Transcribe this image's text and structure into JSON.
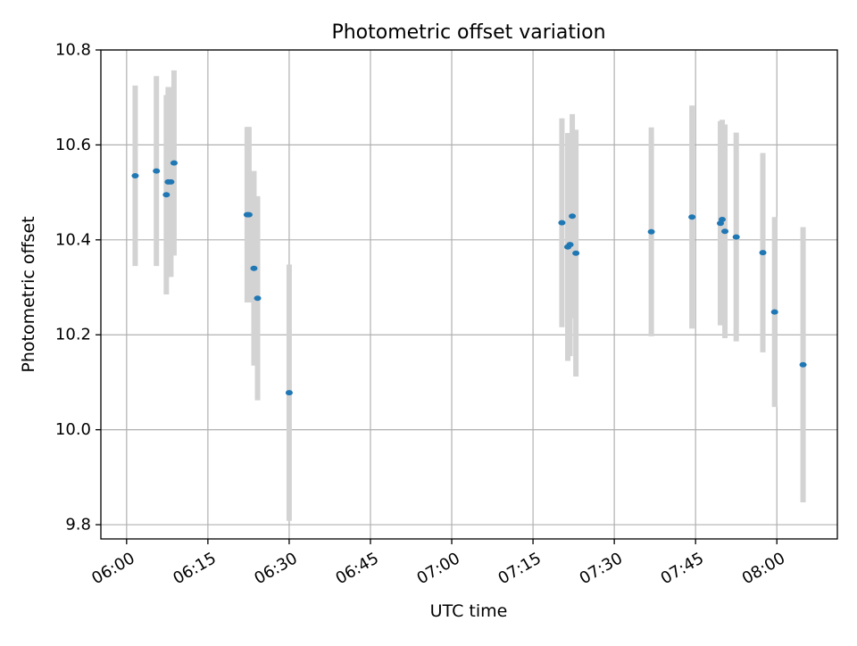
{
  "chart_data": {
    "type": "scatter",
    "title": "Photometric offset variation",
    "xlabel": "UTC time",
    "ylabel": "Photometric offset",
    "x_tick_labels": [
      "06:00",
      "06:15",
      "06:30",
      "06:45",
      "07:00",
      "07:15",
      "07:30",
      "07:45",
      "08:00"
    ],
    "y_tick_labels": [
      "9.8",
      "10.0",
      "10.2",
      "10.4",
      "10.6",
      "10.8"
    ],
    "x_ticks": [
      "06:00",
      "06:15",
      "06:30",
      "06:45",
      "07:00",
      "07:15",
      "07:30",
      "07:45",
      "08:00"
    ],
    "y_ticks": [
      9.8,
      10.0,
      10.2,
      10.4,
      10.6,
      10.8
    ],
    "xlim": [
      "05:55:15",
      "08:11:10"
    ],
    "ylim": [
      9.77,
      10.8
    ],
    "grid": true,
    "marker_color": "#1f77b4",
    "errorbar_color": "#d3d3d3",
    "points": [
      {
        "x": "06:01:35",
        "y": 10.535,
        "err": 0.19
      },
      {
        "x": "06:05:30",
        "y": 10.545,
        "err": 0.2
      },
      {
        "x": "06:07:20",
        "y": 10.495,
        "err": 0.21
      },
      {
        "x": "06:07:40",
        "y": 10.522,
        "err": 0.2
      },
      {
        "x": "06:08:10",
        "y": 10.522,
        "err": 0.2
      },
      {
        "x": "06:08:45",
        "y": 10.562,
        "err": 0.195
      },
      {
        "x": "06:22:15",
        "y": 10.453,
        "err": 0.185
      },
      {
        "x": "06:22:35",
        "y": 10.453,
        "err": 0.185
      },
      {
        "x": "06:23:30",
        "y": 10.34,
        "err": 0.205
      },
      {
        "x": "06:24:10",
        "y": 10.277,
        "err": 0.215
      },
      {
        "x": "06:30:00",
        "y": 10.078,
        "err": 0.27
      },
      {
        "x": "07:20:20",
        "y": 10.436,
        "err": 0.22
      },
      {
        "x": "07:21:25",
        "y": 10.385,
        "err": 0.24
      },
      {
        "x": "07:21:50",
        "y": 10.39,
        "err": 0.235
      },
      {
        "x": "07:22:15",
        "y": 10.45,
        "err": 0.215
      },
      {
        "x": "07:22:55",
        "y": 10.372,
        "err": 0.26
      },
      {
        "x": "07:36:50",
        "y": 10.417,
        "err": 0.22
      },
      {
        "x": "07:44:20",
        "y": 10.448,
        "err": 0.235
      },
      {
        "x": "07:49:35",
        "y": 10.435,
        "err": 0.215
      },
      {
        "x": "07:49:55",
        "y": 10.443,
        "err": 0.21
      },
      {
        "x": "07:50:25",
        "y": 10.418,
        "err": 0.225
      },
      {
        "x": "07:52:30",
        "y": 10.406,
        "err": 0.22
      },
      {
        "x": "07:57:25",
        "y": 10.373,
        "err": 0.21
      },
      {
        "x": "07:59:35",
        "y": 10.248,
        "err": 0.2
      },
      {
        "x": "08:04:50",
        "y": 10.137,
        "err": 0.29
      }
    ]
  }
}
